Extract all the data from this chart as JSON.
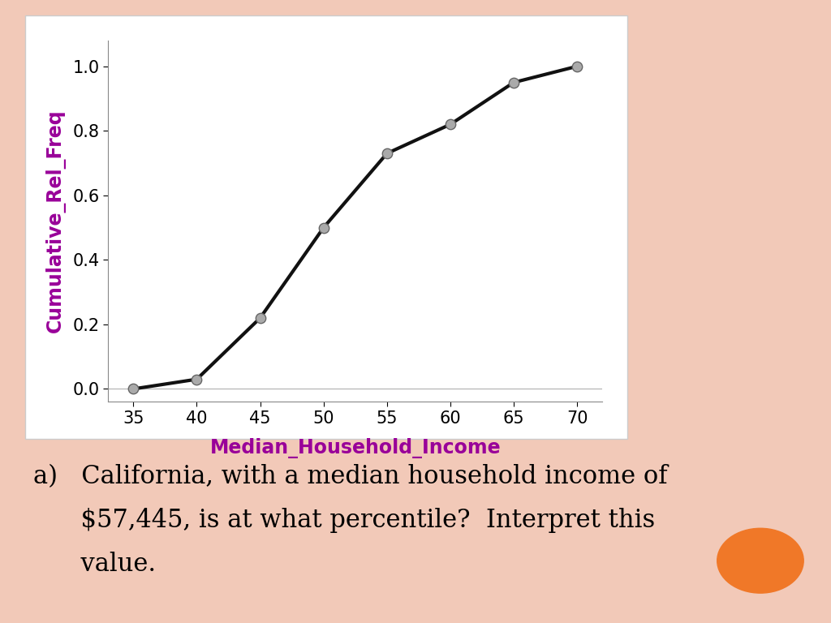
{
  "x": [
    35,
    40,
    45,
    50,
    55,
    60,
    65,
    70
  ],
  "y": [
    0.0,
    0.03,
    0.22,
    0.5,
    0.73,
    0.82,
    0.95,
    1.0
  ],
  "xlabel": "Median_Household_Income",
  "ylabel": "Cumulative_Rel_Freq",
  "xlabel_color": "#990099",
  "ylabel_color": "#990099",
  "line_color": "#111111",
  "marker_color": "#aaaaaa",
  "marker_edgecolor": "#666666",
  "xlim": [
    33,
    72
  ],
  "ylim": [
    -0.04,
    1.08
  ],
  "xticks": [
    35,
    40,
    45,
    50,
    55,
    60,
    65,
    70
  ],
  "yticks": [
    0.0,
    0.2,
    0.4,
    0.6,
    0.8,
    1.0
  ],
  "background_color": "#ffffff",
  "outer_background": "#f2c9b8",
  "orange_circle_color": "#f07828",
  "text_line1": "a)   California, with a median household income of",
  "text_line2": "      $57,445, is at what percentile?  Interpret this",
  "text_line3": "      value.",
  "text_fontsize": 22
}
